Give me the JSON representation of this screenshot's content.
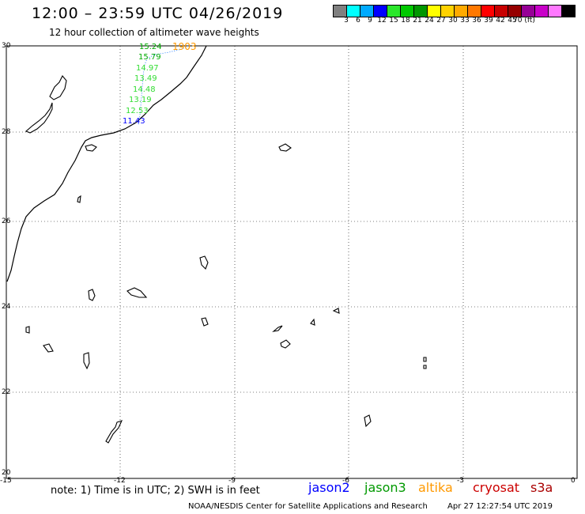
{
  "title": "12:00 – 23:59 UTC 04/26/2019",
  "subtitle": "12 hour collection of altimeter wave heights",
  "color_scale": {
    "swatches": [
      "#808080",
      "#00ffff",
      "#00aaff",
      "#0000ff",
      "#2be62b",
      "#00c800",
      "#009600",
      "#ffff00",
      "#ffd200",
      "#ffaa00",
      "#ff7800",
      "#ff0000",
      "#c80000",
      "#960000",
      "#960096",
      "#c800c8",
      "#ff78ff",
      "#000000"
    ],
    "labels": [
      "3",
      "6",
      "9",
      "12",
      "15",
      "18",
      "21",
      "24",
      "27",
      "30",
      "33",
      "36",
      "39",
      "42",
      "45",
      "70 (ft)"
    ]
  },
  "lat_labels": [
    "30",
    "28",
    "26",
    "24",
    "22",
    "20"
  ],
  "lon_labels": [
    "-15",
    "-12",
    "-9",
    "-6",
    "-3",
    "0"
  ],
  "swh_readings": [
    {
      "value": "15.24",
      "color": "#00aa00"
    },
    {
      "value": "15.79",
      "color": "#00aa00"
    },
    {
      "value": "14.97",
      "color": "#33dd33"
    },
    {
      "value": "13.49",
      "color": "#33dd33"
    },
    {
      "value": "14.48",
      "color": "#33dd33"
    },
    {
      "value": "13.19",
      "color": "#33dd33"
    },
    {
      "value": "12.53",
      "color": "#33dd33"
    },
    {
      "value": "11.43",
      "color": "#0000ff"
    }
  ],
  "altika_reading": {
    "value": "1903",
    "color": "#ff9900"
  },
  "note": "note:  1) Time is in UTC;  2) SWH is in feet",
  "satellites": [
    {
      "name": "jason2",
      "color": "#0000ff"
    },
    {
      "name": "jason3",
      "color": "#009900"
    },
    {
      "name": "altika",
      "color": "#ff9900"
    },
    {
      "name": "cryosat",
      "color": "#cc0000"
    },
    {
      "name": "s3a",
      "color": "#aa0000"
    }
  ],
  "footer": {
    "center": "NOAA/NESDIS Center for Satellite Applications and Research",
    "timestamp": "Apr 27 12:27:54 UTC 2019"
  }
}
